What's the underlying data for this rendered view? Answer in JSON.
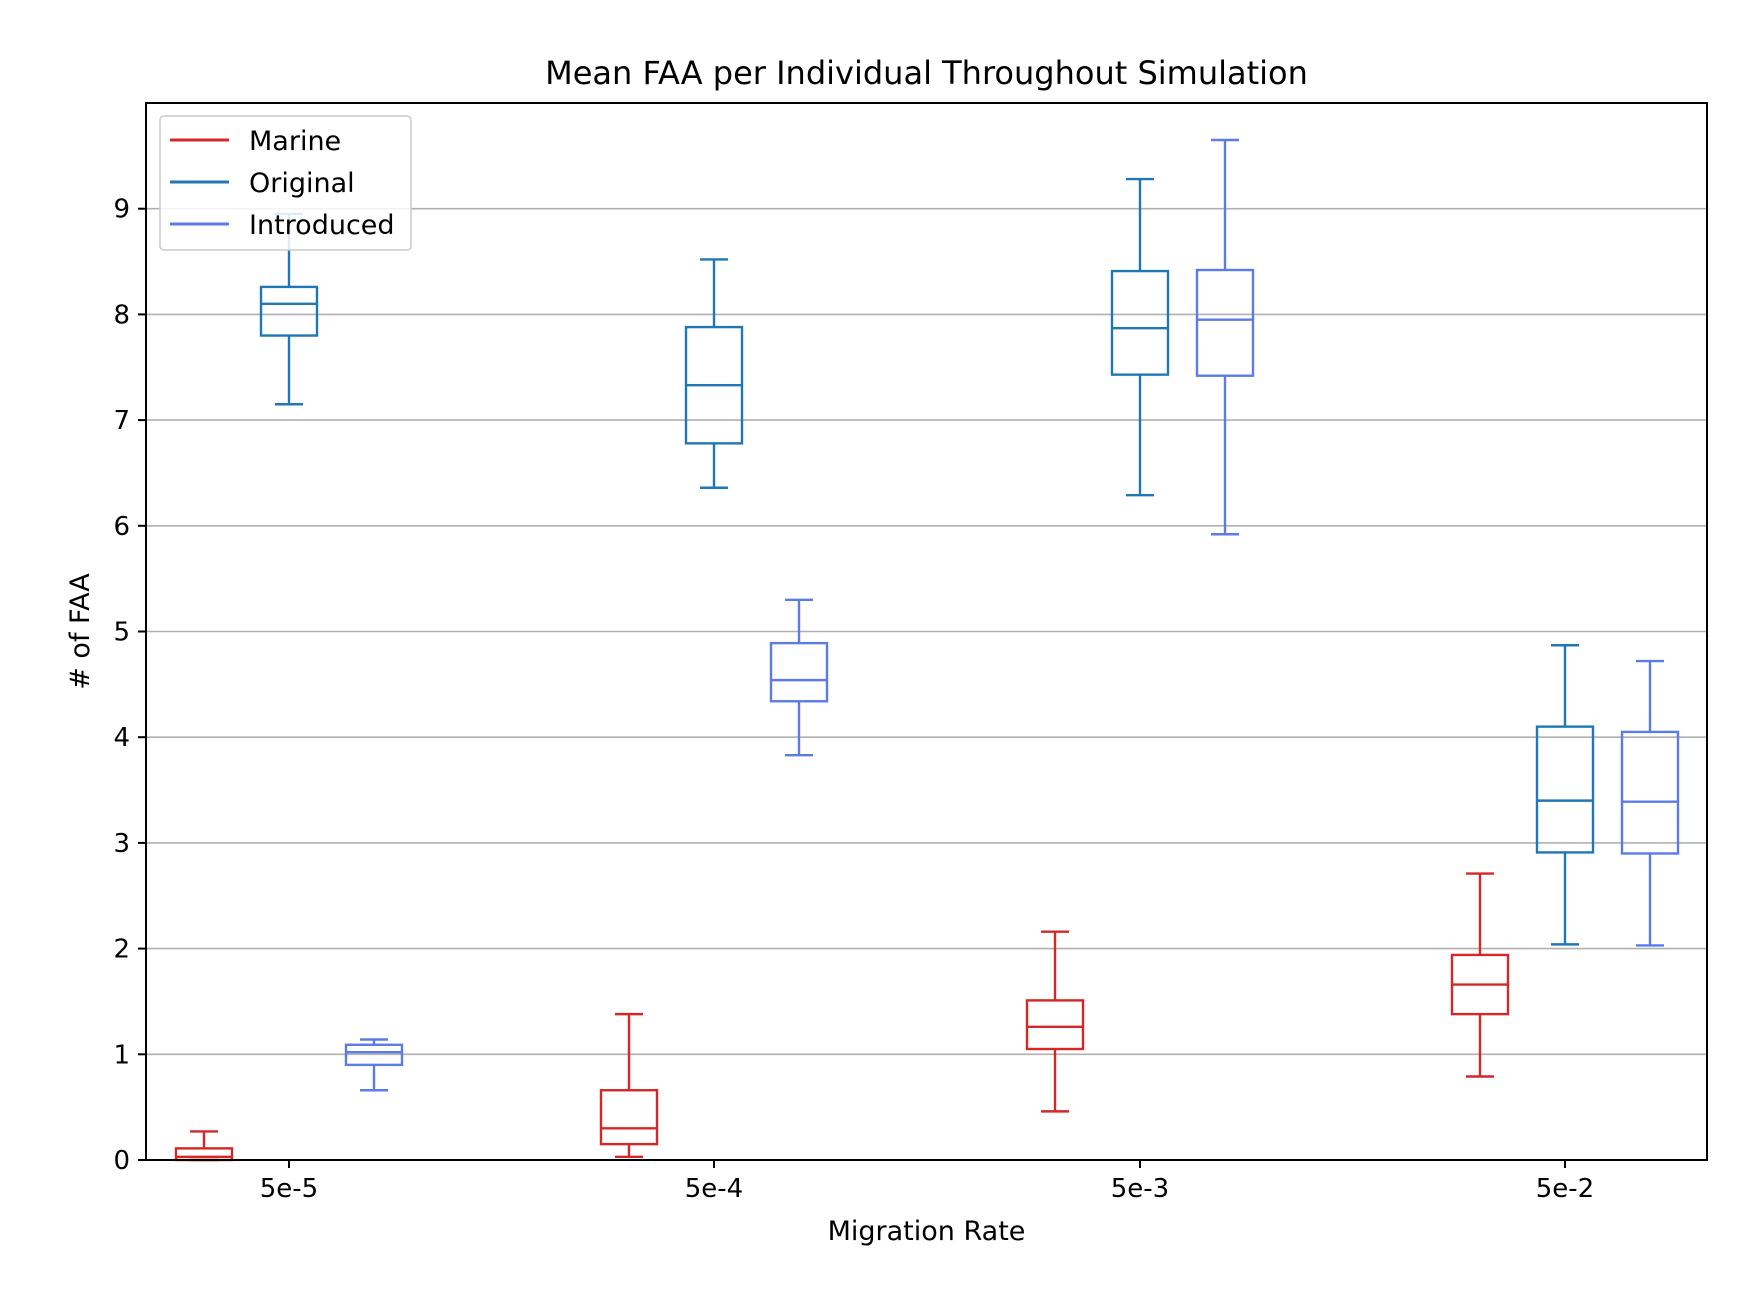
{
  "chart_data": {
    "type": "box",
    "title": "Mean FAA per Individual Throughout Simulation",
    "xlabel": "Migration Rate",
    "ylabel": "# of FAA",
    "categories": [
      "5e-5",
      "5e-4",
      "5e-3",
      "5e-2"
    ],
    "ylim": [
      0,
      10
    ],
    "yticks": [
      0,
      1,
      2,
      3,
      4,
      5,
      6,
      7,
      8,
      9
    ],
    "grid": "horizontal",
    "legend_position": "upper-left",
    "series": [
      {
        "name": "Marine",
        "color": "#d62728",
        "offset": -1,
        "boxes": [
          {
            "category": "5e-5",
            "whisker_low": 0.0,
            "q1": 0.0,
            "median": 0.03,
            "q3": 0.11,
            "whisker_high": 0.27
          },
          {
            "category": "5e-4",
            "whisker_low": 0.03,
            "q1": 0.15,
            "median": 0.3,
            "q3": 0.66,
            "whisker_high": 1.38
          },
          {
            "category": "5e-3",
            "whisker_low": 0.46,
            "q1": 1.05,
            "median": 1.26,
            "q3": 1.51,
            "whisker_high": 2.16
          },
          {
            "category": "5e-2",
            "whisker_low": 0.79,
            "q1": 1.38,
            "median": 1.66,
            "q3": 1.94,
            "whisker_high": 2.71
          }
        ]
      },
      {
        "name": "Original",
        "color": "#1f77b4",
        "offset": 0,
        "boxes": [
          {
            "category": "5e-5",
            "whisker_low": 7.15,
            "q1": 7.8,
            "median": 8.1,
            "q3": 8.26,
            "whisker_high": 8.95
          },
          {
            "category": "5e-4",
            "whisker_low": 6.36,
            "q1": 6.78,
            "median": 7.33,
            "q3": 7.88,
            "whisker_high": 8.52
          },
          {
            "category": "5e-3",
            "whisker_low": 6.29,
            "q1": 7.43,
            "median": 7.87,
            "q3": 8.41,
            "whisker_high": 9.28
          },
          {
            "category": "5e-2",
            "whisker_low": 2.04,
            "q1": 2.91,
            "median": 3.4,
            "q3": 4.1,
            "whisker_high": 4.87
          }
        ]
      },
      {
        "name": "Introduced",
        "color": "#5b7be8",
        "offset": 1,
        "boxes": [
          {
            "category": "5e-5",
            "whisker_low": 0.66,
            "q1": 0.9,
            "median": 1.02,
            "q3": 1.09,
            "whisker_high": 1.14
          },
          {
            "category": "5e-4",
            "whisker_low": 3.83,
            "q1": 4.34,
            "median": 4.54,
            "q3": 4.89,
            "whisker_high": 5.3
          },
          {
            "category": "5e-3",
            "whisker_low": 5.92,
            "q1": 7.42,
            "median": 7.95,
            "q3": 8.42,
            "whisker_high": 9.65
          },
          {
            "category": "5e-2",
            "whisker_low": 2.03,
            "q1": 2.9,
            "median": 3.39,
            "q3": 4.05,
            "whisker_high": 4.72
          }
        ]
      }
    ]
  }
}
